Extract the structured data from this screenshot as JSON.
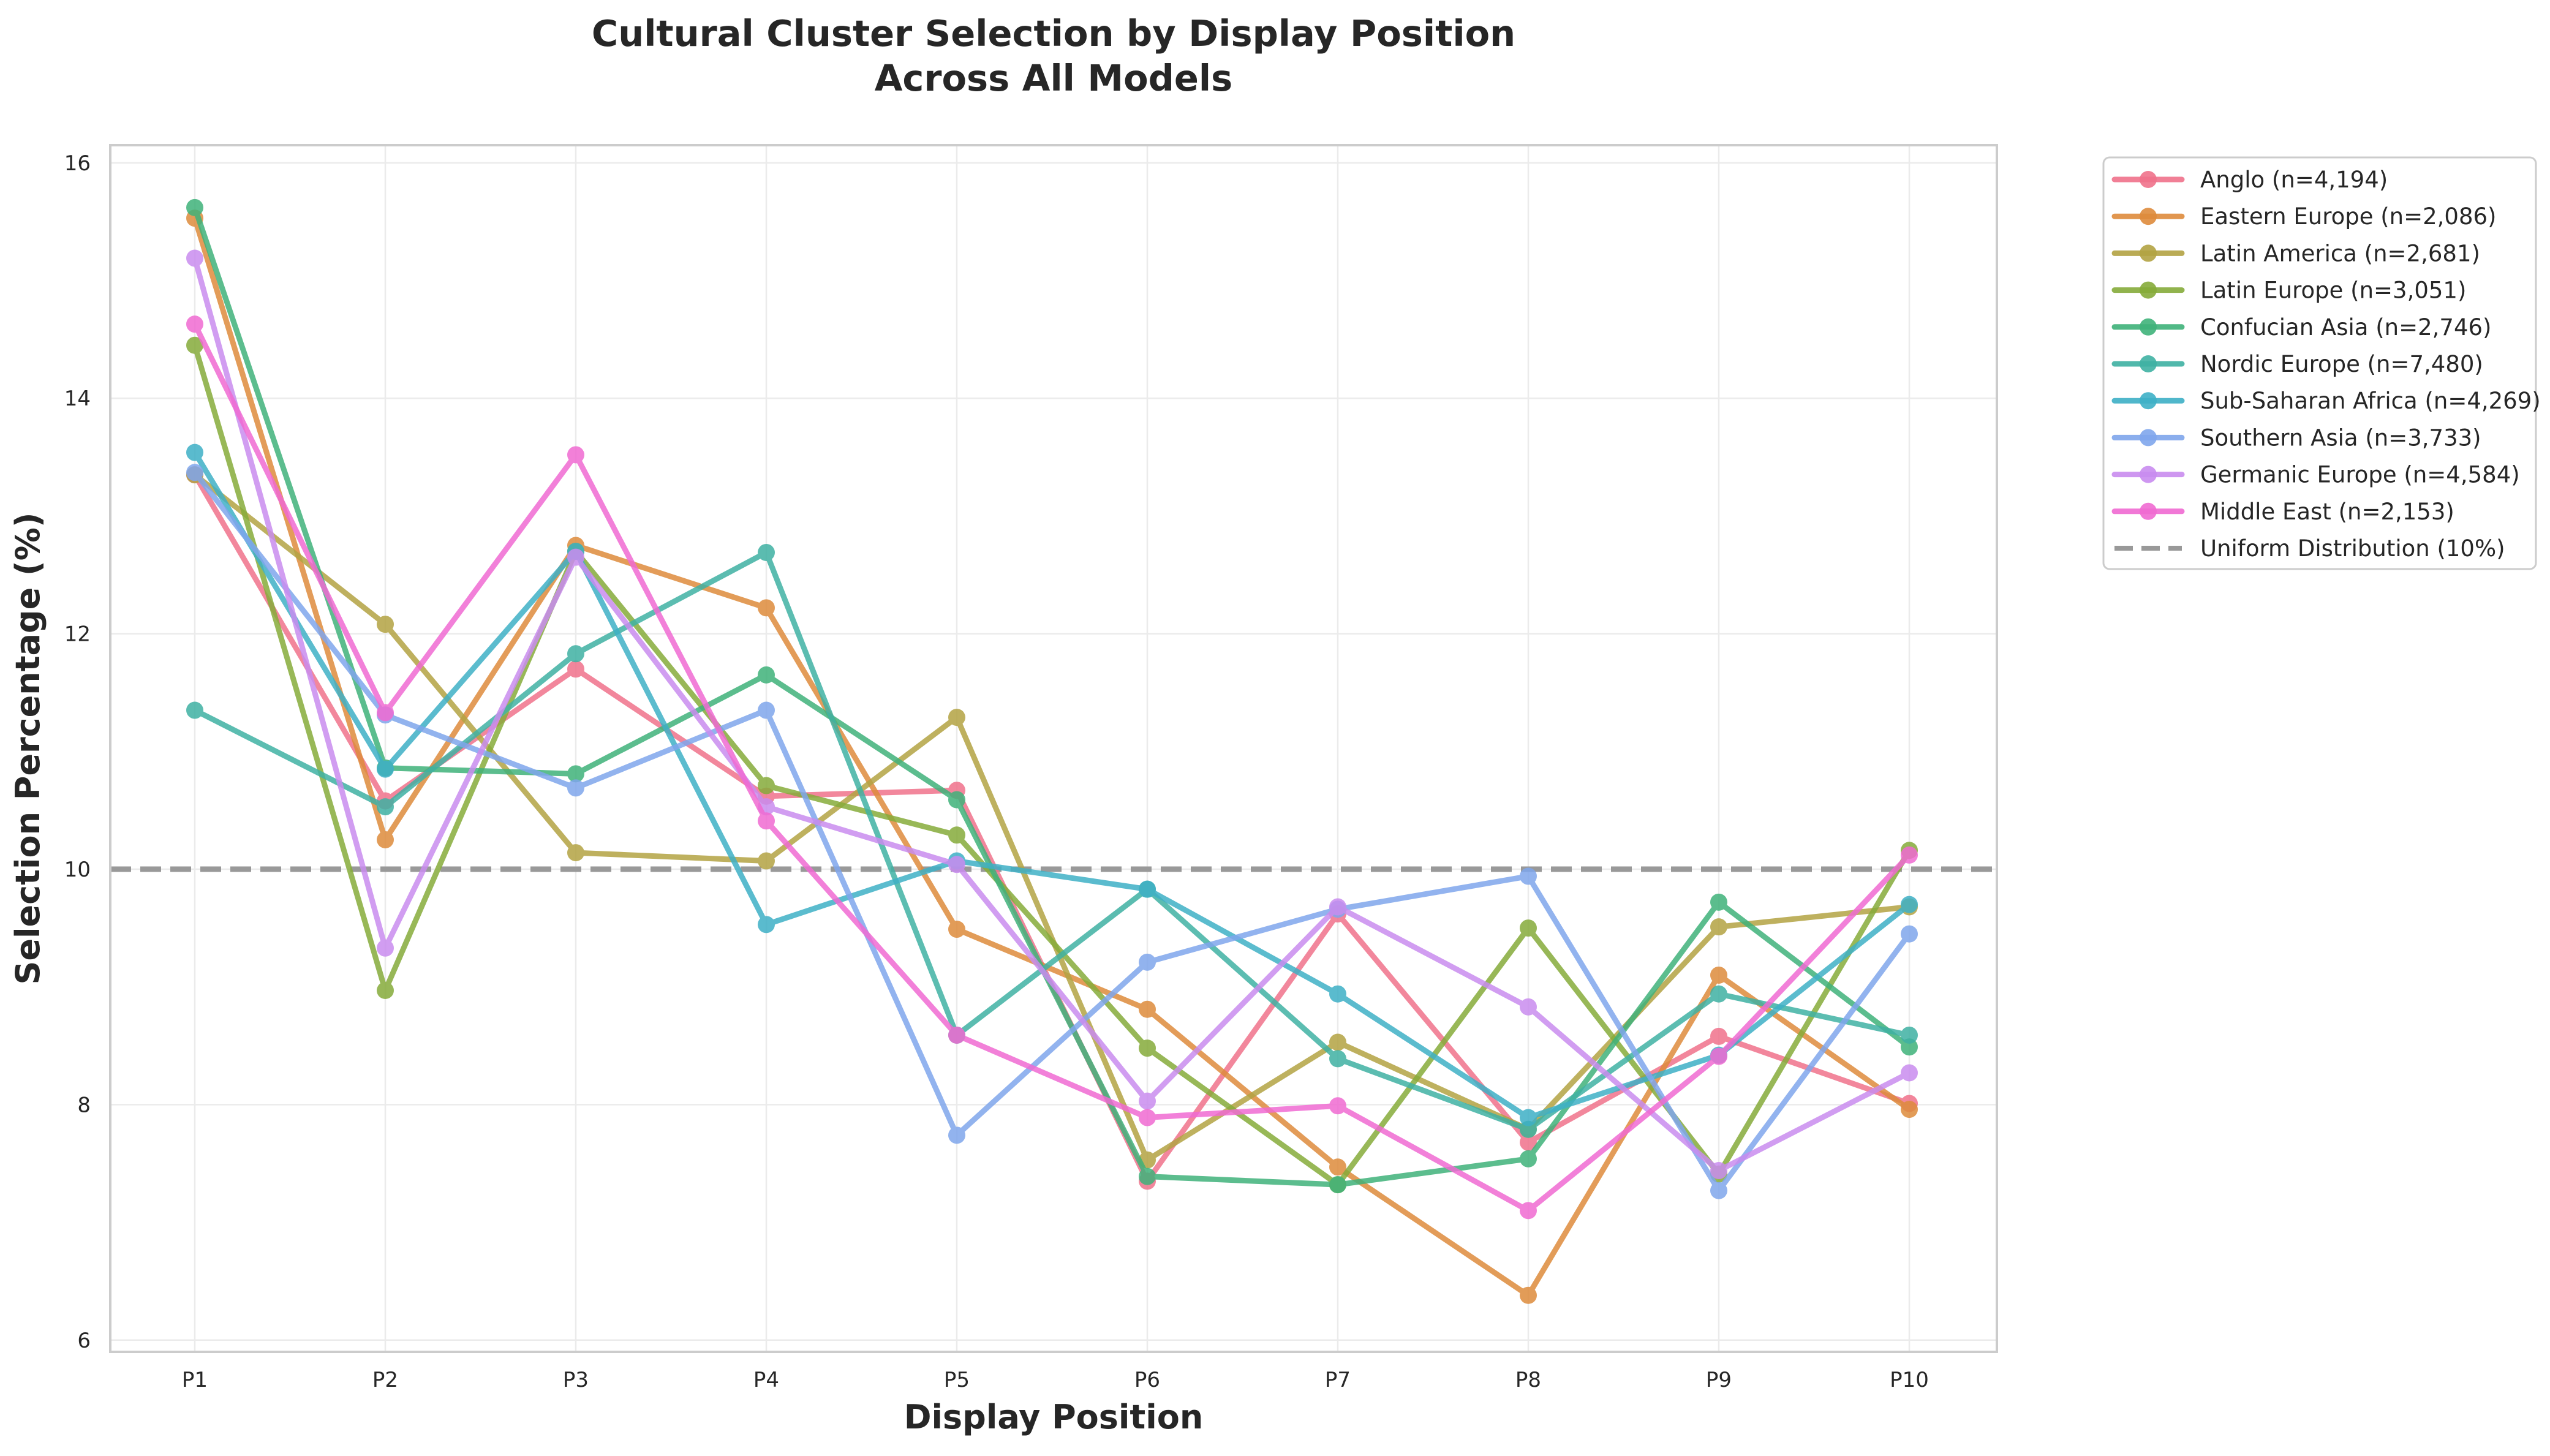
{
  "chart_data": {
    "type": "line",
    "title_lines": [
      "Cultural Cluster Selection by Display Position",
      "Across All Models"
    ],
    "xlabel": "Display Position",
    "ylabel": "Selection Percentage (%)",
    "categories": [
      "P1",
      "P2",
      "P3",
      "P4",
      "P5",
      "P6",
      "P7",
      "P8",
      "P9",
      "P10"
    ],
    "ylim": [
      5.9,
      16.15
    ],
    "yticks": [
      6,
      8,
      10,
      12,
      14,
      16
    ],
    "grid": true,
    "legend_position": "outside-top-right",
    "reference_line": {
      "label": "Uniform Distribution (10%)",
      "value": 10,
      "color": "#999999",
      "style": "dashed"
    },
    "series": [
      {
        "name": "Anglo (n=4,194)",
        "color": "#f0728b",
        "values": [
          13.35,
          10.58,
          11.7,
          10.62,
          10.67,
          7.35,
          9.62,
          7.68,
          8.58,
          8.01
        ]
      },
      {
        "name": "Eastern Europe (n=2,086)",
        "color": "#de8b3c",
        "values": [
          15.53,
          10.25,
          12.75,
          12.22,
          9.49,
          8.81,
          7.47,
          6.38,
          9.1,
          7.96
        ]
      },
      {
        "name": "Latin America (n=2,681)",
        "color": "#b3a343",
        "values": [
          13.35,
          12.08,
          10.14,
          10.07,
          11.29,
          7.53,
          8.53,
          7.79,
          9.51,
          9.68
        ]
      },
      {
        "name": "Latin Europe (n=3,051)",
        "color": "#86ab3a",
        "values": [
          14.45,
          8.97,
          12.7,
          10.71,
          10.29,
          8.48,
          7.32,
          9.5,
          7.41,
          10.16
        ]
      },
      {
        "name": "Confucian Asia (n=2,746)",
        "color": "#3fb27a",
        "values": [
          15.62,
          10.86,
          10.81,
          11.65,
          10.59,
          7.39,
          7.32,
          7.54,
          9.72,
          8.49
        ]
      },
      {
        "name": "Nordic Europe (n=7,480)",
        "color": "#3fb1a3",
        "values": [
          11.35,
          10.53,
          11.83,
          12.69,
          8.59,
          9.83,
          8.39,
          7.79,
          8.94,
          8.59
        ]
      },
      {
        "name": "Sub-Saharan Africa (n=4,269)",
        "color": "#3eb0c6",
        "values": [
          13.54,
          10.85,
          12.7,
          9.53,
          10.07,
          9.83,
          8.94,
          7.89,
          8.42,
          9.7
        ]
      },
      {
        "name": "Southern Asia (n=3,733)",
        "color": "#7fa6ec",
        "values": [
          13.37,
          11.31,
          10.69,
          11.35,
          7.74,
          9.21,
          9.66,
          9.94,
          7.27,
          9.45
        ]
      },
      {
        "name": "Germanic Europe (n=4,584)",
        "color": "#c98cef",
        "values": [
          15.19,
          9.33,
          12.65,
          10.53,
          10.04,
          8.03,
          9.68,
          8.83,
          7.44,
          8.27
        ]
      },
      {
        "name": "Middle East (n=2,153)",
        "color": "#f06ad2",
        "values": [
          14.63,
          11.33,
          13.52,
          10.41,
          8.59,
          7.89,
          7.99,
          7.1,
          8.41,
          10.12
        ]
      }
    ]
  }
}
